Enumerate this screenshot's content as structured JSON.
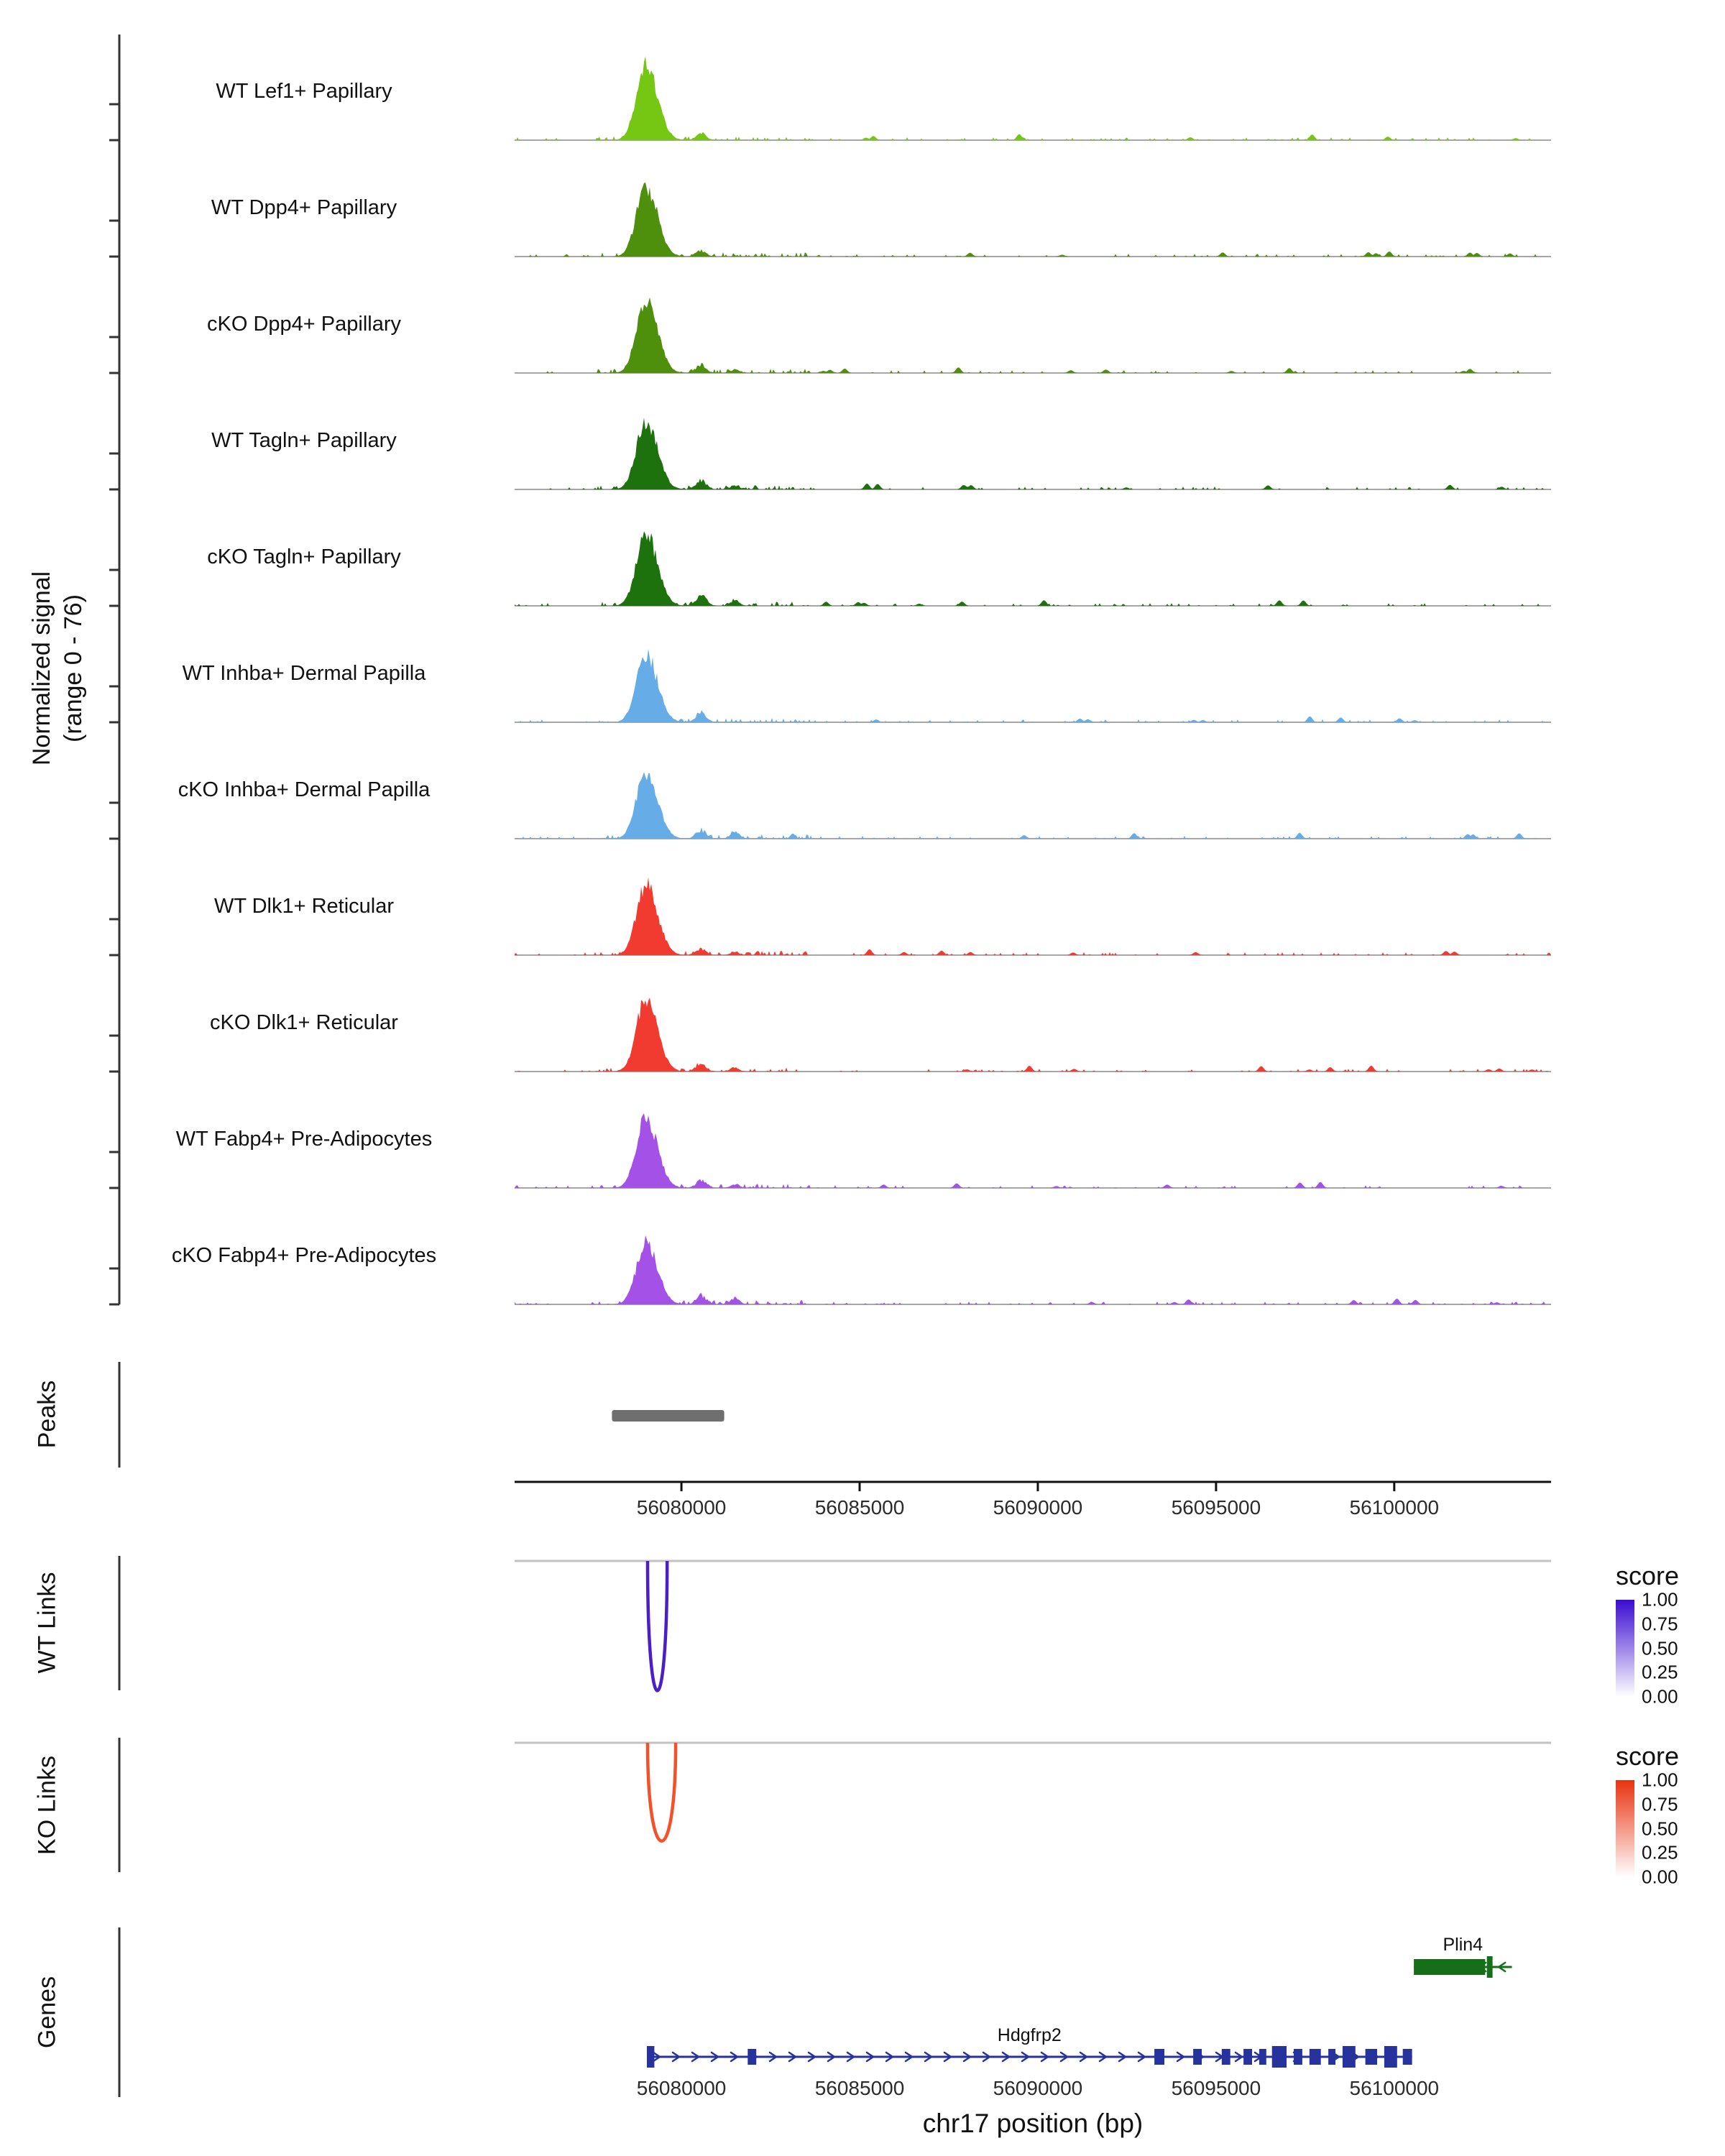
{
  "chart_data": {
    "type": "genome-coverage-tracks",
    "region": {
      "chrom": "chr17",
      "start": 56075320,
      "end": 56104400
    },
    "x_axis": {
      "title": "chr17 position (bp)",
      "ticks": [
        56080000,
        56085000,
        56090000,
        56095000,
        56100000
      ],
      "tick_labels": [
        "56080000",
        "56085000",
        "56090000",
        "56095000",
        "56100000"
      ]
    },
    "y_axis": {
      "label_line1": "Normalized signal",
      "label_line2": "(range 0 - 76)",
      "range": [
        0,
        76
      ]
    },
    "tracks": [
      {
        "name": "WT Lef1+ Papillary",
        "color": "#76C614",
        "peak": 1.0,
        "bump1": 0.1,
        "bump2": 0.0
      },
      {
        "name": "WT Dpp4+ Papillary",
        "color": "#4E8F0C",
        "peak": 0.95,
        "bump1": 0.09,
        "bump2": 0.0
      },
      {
        "name": "cKO Dpp4+ Papillary",
        "color": "#4E8F0C",
        "peak": 0.97,
        "bump1": 0.12,
        "bump2": 0.05
      },
      {
        "name": "WT Tagln+ Papillary",
        "color": "#1D720D",
        "peak": 0.93,
        "bump1": 0.13,
        "bump2": 0.06
      },
      {
        "name": "cKO Tagln+ Papillary",
        "color": "#1D720D",
        "peak": 0.96,
        "bump1": 0.17,
        "bump2": 0.09
      },
      {
        "name": "WT Inhba+ Dermal Papilla",
        "color": "#66ADE8",
        "peak": 0.93,
        "bump1": 0.15,
        "bump2": 0.0
      },
      {
        "name": "cKO Inhba+ Dermal Papilla",
        "color": "#66ADE8",
        "peak": 0.88,
        "bump1": 0.13,
        "bump2": 0.11
      },
      {
        "name": "WT Dlk1+ Reticular",
        "color": "#F23B30",
        "peak": 0.95,
        "bump1": 0.1,
        "bump2": 0.05
      },
      {
        "name": "cKO Dlk1+ Reticular",
        "color": "#F23B30",
        "peak": 0.97,
        "bump1": 0.13,
        "bump2": 0.06
      },
      {
        "name": "WT Fabp4+ Pre-Adipocytes",
        "color": "#A351E6",
        "peak": 0.94,
        "bump1": 0.11,
        "bump2": 0.06
      },
      {
        "name": "cKO Fabp4+ Pre-Adipocytes",
        "color": "#A351E6",
        "peak": 0.82,
        "bump1": 0.13,
        "bump2": 0.1
      }
    ],
    "signal_summary": {
      "main_peak_bp": [
        56078250,
        56079700
      ],
      "main_peak_max": 76,
      "secondary_peak_bp": [
        56080300,
        56080900
      ],
      "secondary_peak_max": 12
    },
    "sections": {
      "peaks_label": "Peaks",
      "wt_links_label": "WT Links",
      "ko_links_label": "KO Links",
      "genes_label": "Genes"
    },
    "peaks": [
      {
        "start": 56078050,
        "end": 56081200
      }
    ],
    "peak_color": "#6F6F6F",
    "links": {
      "wt": {
        "color": "#4A1FC8",
        "anchors": [
          56079050,
          56079600
        ],
        "depth": 0.95,
        "score": 1.0
      },
      "ko": {
        "color": "#F4512B",
        "anchors": [
          56079050,
          56079840
        ],
        "depth": 0.72,
        "score": 1.0
      }
    },
    "legend": {
      "title": "score",
      "labels": [
        "1.00",
        "0.75",
        "0.50",
        "0.25",
        "0.00"
      ],
      "wt_top_color": "#3A0CD0",
      "ko_top_color": "#E8320F"
    },
    "genes": [
      {
        "name": "Plin4",
        "strand": "-",
        "color": "#166E19",
        "row": 0,
        "start": 56100550,
        "end": 56103300,
        "exons": [
          [
            56100550,
            56102550,
            0
          ],
          [
            56102600,
            56102760,
            1
          ]
        ]
      },
      {
        "name": "Hdgfrp2",
        "strand": "+",
        "color": "#27339C",
        "row": 1,
        "start": 56079030,
        "end": 56100500,
        "exons": [
          [
            56079030,
            56079240,
            1
          ],
          [
            56081860,
            56082100,
            0
          ],
          [
            56093270,
            56093550,
            0
          ],
          [
            56094360,
            56094600,
            0
          ],
          [
            56095160,
            56095400,
            0
          ],
          [
            56095770,
            56096010,
            0
          ],
          [
            56096210,
            56096410,
            0
          ],
          [
            56096570,
            56096980,
            1
          ],
          [
            56097180,
            56097420,
            0
          ],
          [
            56097620,
            56097940,
            0
          ],
          [
            56098150,
            56098350,
            0
          ],
          [
            56098550,
            56098910,
            1
          ],
          [
            56099190,
            56099520,
            0
          ],
          [
            56099720,
            56100080,
            1
          ],
          [
            56100240,
            56100500,
            0
          ]
        ]
      }
    ]
  }
}
